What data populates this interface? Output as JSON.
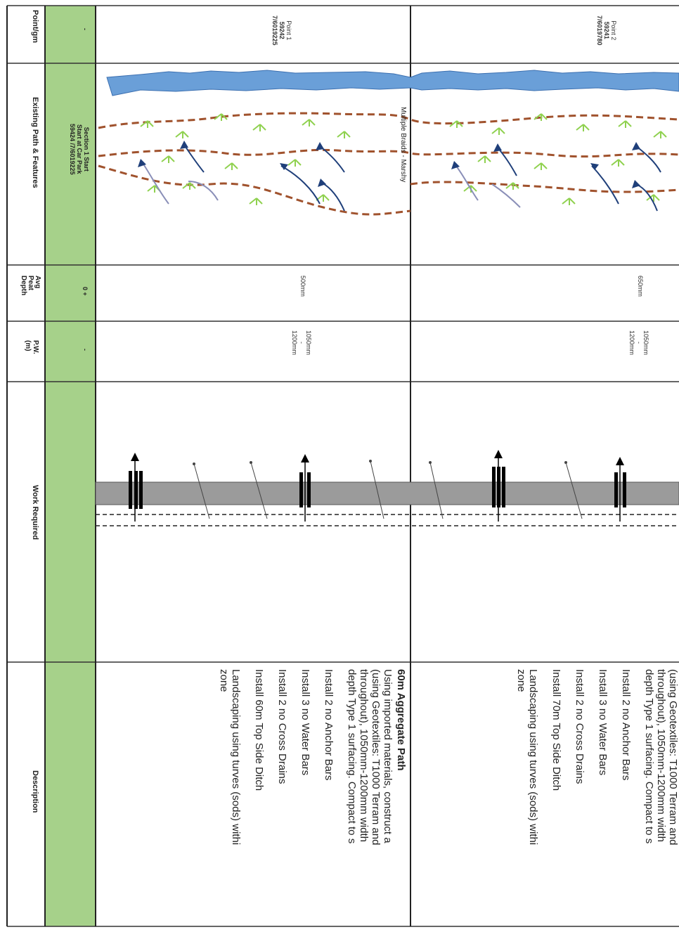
{
  "headers": {
    "point_gm": "Point/gm",
    "existing_path": "Existing Path & Features",
    "avg_peat_depth": [
      "Avg",
      "Peat",
      "Depth"
    ],
    "pw": [
      "P.W.",
      "(m)"
    ],
    "work_required": "Work Required",
    "description": "Description"
  },
  "start_section": {
    "point_dash": "-",
    "section_lines": [
      "Section 1 Start",
      "Start at Car Park",
      "59424 /7/6019225"
    ],
    "avg_depth": "0 +",
    "pw_dash": "-"
  },
  "rows": [
    {
      "point": [
        "Point 1",
        "59242",
        "7/6019225"
      ],
      "feature_label": "Multiple Braids - Marshy",
      "avg_depth": "500mm",
      "pw": [
        "1050mm",
        "-",
        "1200mm"
      ],
      "desc_title": "60m Aggregate Path",
      "desc_intro": [
        "Using imported materials, construct a",
        "(using Geotextiles: T1000 Terram and",
        "throughout), 1050mm-1200mm width",
        "depth Type 1 surfacing. Compact to s"
      ],
      "desc_items": [
        "Install 2 no Anchor Bars",
        "Install 3 no Water Bars",
        "Install 2 no Cross Drains",
        "Install 60m Top Side Ditch",
        "Landscaping using turves (sods) withi",
        "zone"
      ]
    },
    {
      "point": [
        "Point 2",
        "59241",
        "7/6019780"
      ],
      "avg_depth": "650mm",
      "pw": [
        "1050mm",
        "-",
        "1200mm"
      ],
      "desc_intro": [
        "(using Geotextiles: T1000 Terram and",
        "throughout), 1050mm-1200mm width",
        "depth Type 1 surfacing. Compact to s"
      ],
      "desc_items": [
        "Install 2 no Anchor Bars",
        "Install 3 no Water Bars",
        "Install 2 no Cross Drains",
        "Install 70m Top Side Ditch",
        "Landscaping using turves (sods) withi",
        "zone"
      ]
    }
  ],
  "colors": {
    "green_column": "#a6d18a",
    "water": "#6a9fd8",
    "path_dash": "#a0522d",
    "plant": "#8fd14f",
    "arrow": "#1f3f7a",
    "path_band": "#9b9b9b"
  }
}
